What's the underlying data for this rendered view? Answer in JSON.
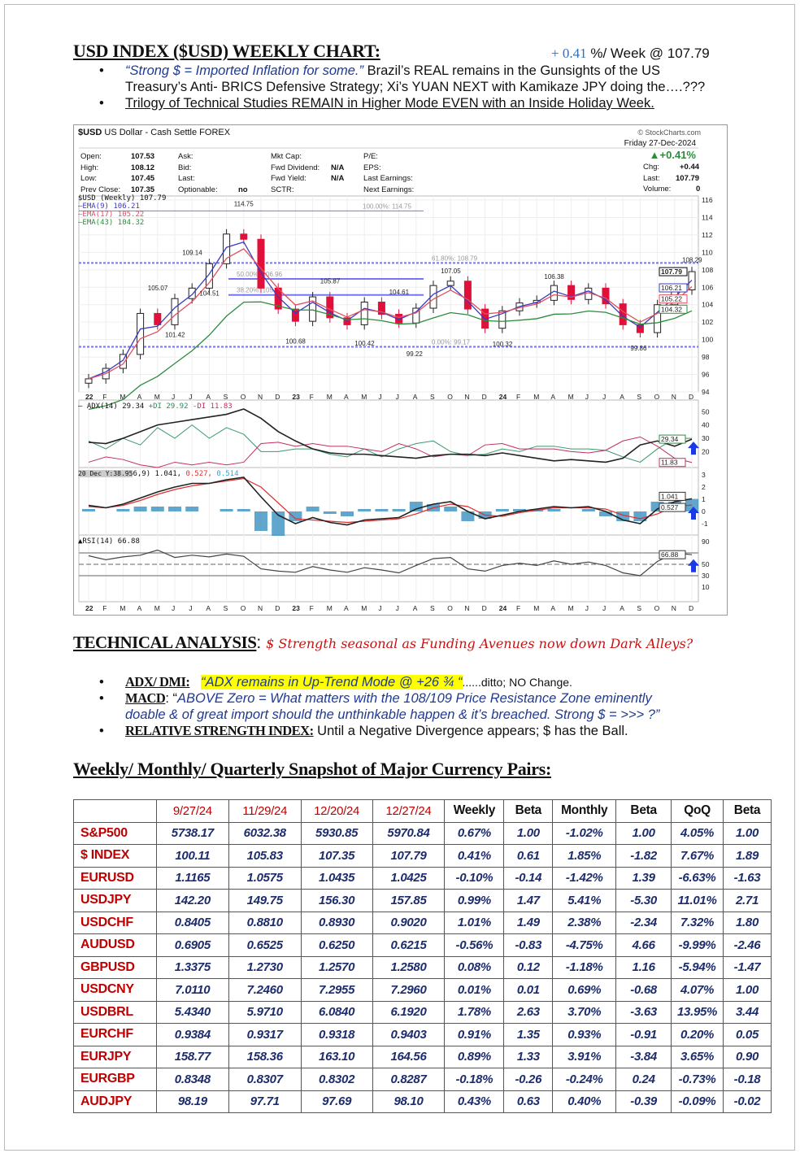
{
  "header": {
    "title": "USD INDEX ($USD) WEEKLY CHART:",
    "change": "+ 0.41",
    "change_suffix": "%/ Week @ 107.79"
  },
  "bullets": [
    {
      "quote": "“Strong $ = Imported Inflation for some.”",
      "text": " Brazil’s REAL remains in the Gunsights of the US",
      "text2": "Treasury’s Anti- BRICS Defensive Strategy; Xi’s YUAN NEXT with Kamikaze JPY doing the….???"
    },
    {
      "text": "Trilogy of Technical Studies REMAIN in Higher Mode EVEN with an Inside Holiday Week."
    }
  ],
  "chart": {
    "symbol": "$USD",
    "name": "US Dollar - Cash Settle FOREX",
    "source": "© StockCharts.com",
    "date": "Friday  27-Dec-2024",
    "pct": "▲+0.41%",
    "info": [
      [
        "Open:",
        "107.53"
      ],
      [
        "High:",
        "108.12"
      ],
      [
        "Low:",
        "107.45"
      ],
      [
        "Prev Close:",
        "107.35"
      ]
    ],
    "info2": [
      "Ask:",
      "Bid:",
      "Last:",
      "Optionable:"
    ],
    "optionable": "no",
    "info3": [
      [
        "Mkt Cap:",
        ""
      ],
      [
        "Fwd Dividend:",
        "N/A"
      ],
      [
        "Fwd Yield:",
        "N/A"
      ],
      [
        "SCTR:",
        ""
      ]
    ],
    "info4": [
      "P/E:",
      "EPS:",
      "Last Earnings:",
      "Next Earnings:"
    ],
    "info5": [
      [
        "Chg:",
        "+0.44"
      ],
      [
        "Last:",
        "107.79"
      ],
      [
        "Volume:",
        "0"
      ]
    ],
    "legend": [
      "$USD (Weekly) 107.79",
      "EMA(9) 106.21",
      "EMA(17) 105.22",
      "EMA(43) 104.32"
    ],
    "adx_legend": "ADX(14) 29.34",
    "pdi_legend": "+DI 29.92",
    "mdi_legend": "-DI 11.83",
    "macd_legend": "20 Dec Y:38.95",
    "macd_vals": "6,9) 1.041, ",
    "macd_sig": "0.527, ",
    "macd_hist": "0.514",
    "rsi_legend": "RSI(14) 66.88",
    "colors": {
      "up": "#ffffff",
      "down": "#e0103a",
      "ema9": "#3a3ac0",
      "ema17": "#e05060",
      "ema43": "#2e8b3e",
      "fib": "#5555ee",
      "arrow": "#1a3ae8"
    }
  },
  "chart_data": {
    "type": "line",
    "x": [
      "22",
      "F",
      "M",
      "A",
      "M",
      "J",
      "J",
      "A",
      "S",
      "O",
      "N",
      "D",
      "23",
      "F",
      "M",
      "A",
      "M",
      "J",
      "J",
      "A",
      "S",
      "O",
      "N",
      "D",
      "24",
      "F",
      "M",
      "A",
      "M",
      "J",
      "J",
      "A",
      "S",
      "O",
      "N",
      "D"
    ],
    "price": [
      95.5,
      96.7,
      98.3,
      103.0,
      101.7,
      104.7,
      105.9,
      108.7,
      112.1,
      111.5,
      105.9,
      103.5,
      102.1,
      104.9,
      102.5,
      101.7,
      104.3,
      102.9,
      101.9,
      103.6,
      106.2,
      106.7,
      103.5,
      101.3,
      103.3,
      104.2,
      104.5,
      106.2,
      104.6,
      105.9,
      104.1,
      101.7,
      100.8,
      104.0,
      105.7,
      107.79
    ],
    "price_ticks": [
      94,
      96,
      98,
      100,
      102,
      104,
      106,
      108,
      110,
      112,
      114,
      116
    ],
    "annotations": [
      "114.75",
      "109.14",
      "105.07",
      "104.51",
      "101.42",
      "100.68",
      "105.87",
      "100.42",
      "104.61",
      "99.22",
      "107.05",
      "100.32",
      "106.38",
      "99.86",
      "108.29"
    ],
    "fib_levels": [
      {
        "label": "100.00%: 114.75",
        "value": 114.75
      },
      {
        "label": "61.80%: 108.79",
        "value": 108.79
      },
      {
        "label": "50.00%: 106.96",
        "value": 106.96
      },
      {
        "label": "38.20%: 105.12",
        "value": 105.12
      },
      {
        "label": "0.00%: 99.17",
        "value": 99.17
      }
    ],
    "right_tags": [
      "107.79",
      "106.21",
      "105.22",
      "104.32"
    ],
    "adx": [
      27,
      26,
      30,
      35,
      40,
      42,
      44,
      46,
      48,
      52,
      45,
      35,
      28,
      22,
      19,
      18,
      18,
      17,
      16,
      15,
      17,
      18,
      18,
      17,
      19,
      17,
      15,
      13,
      14,
      13,
      12,
      15,
      25,
      28,
      24,
      29.34
    ],
    "pdi": [
      28,
      22,
      30,
      25,
      38,
      30,
      40,
      30,
      38,
      33,
      20,
      20,
      22,
      22,
      18,
      16,
      22,
      16,
      22,
      26,
      28,
      20,
      17,
      18,
      22,
      20,
      24,
      24,
      22,
      22,
      21,
      16,
      12,
      22,
      30,
      29.92
    ],
    "mdi": [
      12,
      16,
      14,
      10,
      8,
      12,
      10,
      12,
      10,
      12,
      26,
      27,
      24,
      26,
      24,
      24,
      22,
      20,
      26,
      22,
      16,
      18,
      17,
      25,
      26,
      22,
      22,
      22,
      20,
      19,
      21,
      28,
      31,
      24,
      15,
      11.83
    ],
    "adx_ticks": [
      20,
      30,
      40,
      50
    ],
    "adx_tags": [
      "29.34",
      "11.83"
    ],
    "macd": [
      0.5,
      0.3,
      0.6,
      1.1,
      1.6,
      2.0,
      2.3,
      2.3,
      2.6,
      2.8,
      1.2,
      -0.3,
      -1.0,
      -0.5,
      -0.9,
      -1.1,
      -0.7,
      -0.6,
      -0.5,
      0.2,
      0.6,
      0.8,
      0.0,
      -0.6,
      -0.3,
      0.0,
      0.2,
      0.4,
      0.3,
      0.4,
      0.0,
      -0.7,
      -1.0,
      0.2,
      0.8,
      1.041
    ],
    "signal": [
      0.4,
      0.3,
      0.5,
      0.9,
      1.4,
      1.8,
      2.1,
      2.3,
      2.5,
      2.7,
      2.0,
      0.7,
      -0.6,
      -0.7,
      -0.8,
      -0.9,
      -0.8,
      -0.7,
      -0.6,
      -0.2,
      0.3,
      0.6,
      0.4,
      -0.3,
      -0.4,
      -0.1,
      0.1,
      0.3,
      0.3,
      0.3,
      0.2,
      -0.3,
      -0.6,
      -0.2,
      0.4,
      0.527
    ],
    "macd_ticks": [
      -1,
      0,
      1,
      2,
      3
    ],
    "macd_tags": [
      "1.041",
      "0.527"
    ],
    "rsi": [
      65,
      58,
      63,
      66,
      75,
      62,
      66,
      63,
      68,
      64,
      42,
      38,
      36,
      46,
      40,
      36,
      44,
      40,
      35,
      48,
      60,
      62,
      42,
      38,
      48,
      52,
      48,
      56,
      50,
      54,
      48,
      35,
      30,
      55,
      70,
      66.88
    ],
    "rsi_ticks": [
      10,
      30,
      50,
      90
    ],
    "rsi_tag": "66.88"
  },
  "analysis": {
    "title": "TECHNICAL ANALYSIS",
    "colon": ":",
    "subtitle": "$ Strength seasonal as Funding Avenues now down Dark Alleys?",
    "items": [
      {
        "label": "ADX/ DMI:",
        "quote": "“ADX remains in Up-Trend Mode @ +26 ¾ “",
        "text": "......ditto; NO Change."
      },
      {
        "label": "MACD",
        "colon": ": “",
        "quote": "ABOVE Zero = What matters with the 108/109 Price Resistance Zone eminently",
        "quote2": "doable & of great import should the unthinkable happen & it’s breached. Strong $ = >>> ?”"
      },
      {
        "label": "RELATIVE STRENGTH INDEX:",
        "text": " Until a Negative Divergence appears; $ has the Ball."
      }
    ]
  },
  "snapshot": {
    "title": "Weekly/ Monthly/ Quarterly Snapshot of Major Currency Pairs:",
    "headers": [
      "",
      "9/27/24",
      "11/29/24",
      "12/20/24",
      "12/27/24",
      "Weekly",
      "Beta",
      "Monthly",
      "Beta",
      "QoQ",
      "Beta"
    ],
    "rows": [
      [
        "S&P500",
        "5738.17",
        "6032.38",
        "5930.85",
        "5970.84",
        "0.67%",
        "1.00",
        "-1.02%",
        "1.00",
        "4.05%",
        "1.00"
      ],
      [
        "$ INDEX",
        "100.11",
        "105.83",
        "107.35",
        "107.79",
        "0.41%",
        "0.61",
        "1.85%",
        "-1.82",
        "7.67%",
        "1.89"
      ],
      [
        "EURUSD",
        "1.1165",
        "1.0575",
        "1.0435",
        "1.0425",
        "-0.10%",
        "-0.14",
        "-1.42%",
        "1.39",
        "-6.63%",
        "-1.63"
      ],
      [
        "USDJPY",
        "142.20",
        "149.75",
        "156.30",
        "157.85",
        "0.99%",
        "1.47",
        "5.41%",
        "-5.30",
        "11.01%",
        "2.71"
      ],
      [
        "USDCHF",
        "0.8405",
        "0.8810",
        "0.8930",
        "0.9020",
        "1.01%",
        "1.49",
        "2.38%",
        "-2.34",
        "7.32%",
        "1.80"
      ],
      [
        "AUDUSD",
        "0.6905",
        "0.6525",
        "0.6250",
        "0.6215",
        "-0.56%",
        "-0.83",
        "-4.75%",
        "4.66",
        "-9.99%",
        "-2.46"
      ],
      [
        "GBPUSD",
        "1.3375",
        "1.2730",
        "1.2570",
        "1.2580",
        "0.08%",
        "0.12",
        "-1.18%",
        "1.16",
        "-5.94%",
        "-1.47"
      ],
      [
        "USDCNY",
        "7.0110",
        "7.2460",
        "7.2955",
        "7.2960",
        "0.01%",
        "0.01",
        "0.69%",
        "-0.68",
        "4.07%",
        "1.00"
      ],
      [
        "USDBRL",
        "5.4340",
        "5.9710",
        "6.0840",
        "6.1920",
        "1.78%",
        "2.63",
        "3.70%",
        "-3.63",
        "13.95%",
        "3.44"
      ],
      [
        "EURCHF",
        "0.9384",
        "0.9317",
        "0.9318",
        "0.9403",
        "0.91%",
        "1.35",
        "0.93%",
        "-0.91",
        "0.20%",
        "0.05"
      ],
      [
        "EURJPY",
        "158.77",
        "158.36",
        "163.10",
        "164.56",
        "0.89%",
        "1.33",
        "3.91%",
        "-3.84",
        "3.65%",
        "0.90"
      ],
      [
        "EURGBP",
        "0.8348",
        "0.8307",
        "0.8302",
        "0.8287",
        "-0.18%",
        "-0.26",
        "-0.24%",
        "0.24",
        "-0.73%",
        "-0.18"
      ],
      [
        "AUDJPY",
        "98.19",
        "97.71",
        "97.69",
        "98.10",
        "0.43%",
        "0.63",
        "0.40%",
        "-0.39",
        "-0.09%",
        "-0.02"
      ]
    ]
  }
}
